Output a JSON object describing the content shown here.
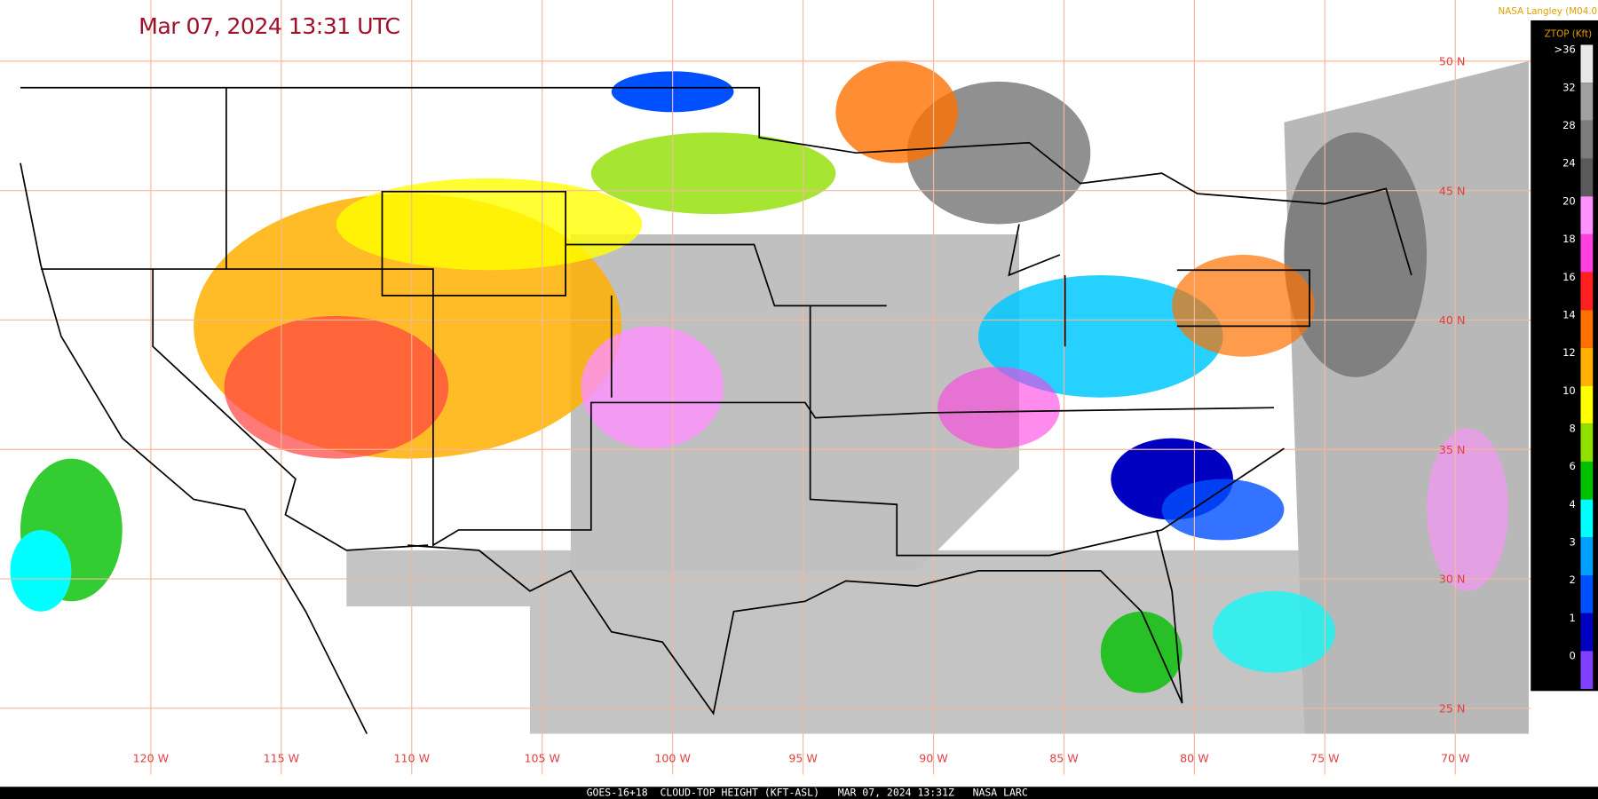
{
  "header": {
    "title": "Mar 07, 2024 13:31 UTC",
    "credit": "NASA Langley (M04.0)"
  },
  "legend": {
    "title": "ZTOP (Kft)",
    "items": [
      {
        "label": ">36",
        "color": "#e8e8e8"
      },
      {
        "label": "32",
        "color": "#a0a0a0"
      },
      {
        "label": "28",
        "color": "#7c7c7c"
      },
      {
        "label": "24",
        "color": "#5a5a5a"
      },
      {
        "label": "20",
        "color": "#ff90ff"
      },
      {
        "label": "18",
        "color": "#ff40e0"
      },
      {
        "label": "16",
        "color": "#ff2020"
      },
      {
        "label": "14",
        "color": "#ff7000"
      },
      {
        "label": "12",
        "color": "#ffb000"
      },
      {
        "label": "10",
        "color": "#ffff00"
      },
      {
        "label": "8",
        "color": "#90e000"
      },
      {
        "label": "6",
        "color": "#00c000"
      },
      {
        "label": "4",
        "color": "#00ffff"
      },
      {
        "label": "3",
        "color": "#00a0ff"
      },
      {
        "label": "2",
        "color": "#0050ff"
      },
      {
        "label": "1",
        "color": "#0000c0"
      },
      {
        "label": "0",
        "color": "#8040ff"
      }
    ]
  },
  "map": {
    "longitudes": [
      "120 W",
      "115 W",
      "110 W",
      "105 W",
      "100 W",
      "95 W",
      "90 W",
      "85 W",
      "80 W",
      "75 W",
      "70 W"
    ],
    "latitudes": [
      "50 N",
      "45 N",
      "40 N",
      "35 N",
      "30 N",
      "25 N"
    ]
  },
  "footer": {
    "caption": "GOES-16+18  CLOUD-TOP HEIGHT (KFT-ASL)   MAR 07, 2024 13:31Z   NASA LARC"
  }
}
